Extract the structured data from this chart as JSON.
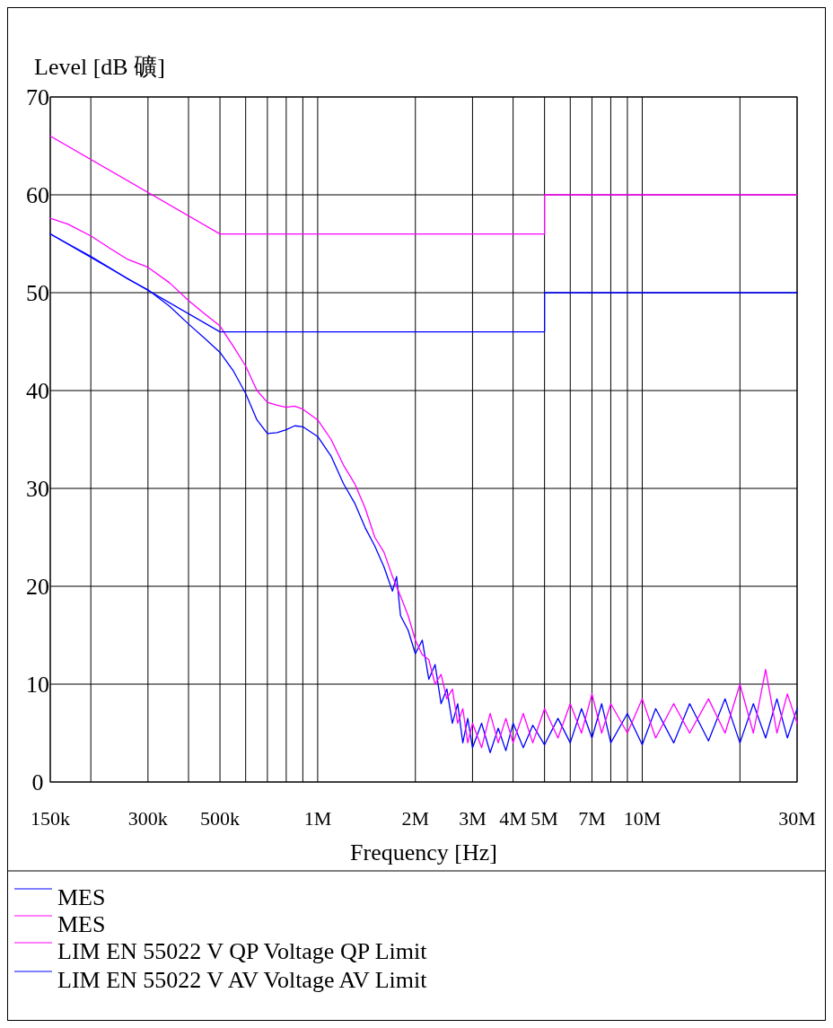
{
  "chart_data": {
    "type": "line",
    "ylabel": "Level [dB 礦]",
    "xlabel": "Frequency [Hz]",
    "log": "x",
    "grid": true,
    "legend": "bottom",
    "line_style": "solid",
    "xlim": [
      150000,
      30000000
    ],
    "xticks": [
      {
        "value": 150000,
        "label": "150k"
      },
      {
        "value": 200000,
        "label": null
      },
      {
        "value": 300000,
        "label": "300k"
      },
      {
        "value": 400000,
        "label": null
      },
      {
        "value": 500000,
        "label": "500k"
      },
      {
        "value": 600000,
        "label": null
      },
      {
        "value": 700000,
        "label": null
      },
      {
        "value": 800000,
        "label": null
      },
      {
        "value": 900000,
        "label": null
      },
      {
        "value": 1000000,
        "label": "1M"
      },
      {
        "value": 2000000,
        "label": "2M"
      },
      {
        "value": 3000000,
        "label": "3M"
      },
      {
        "value": 4000000,
        "label": "4M"
      },
      {
        "value": 5000000,
        "label": "5M"
      },
      {
        "value": 6000000,
        "label": null
      },
      {
        "value": 7000000,
        "label": "7M"
      },
      {
        "value": 8000000,
        "label": null
      },
      {
        "value": 9000000,
        "label": null
      },
      {
        "value": 10000000,
        "label": "10M"
      },
      {
        "value": 20000000,
        "label": null
      },
      {
        "value": 30000000,
        "label": "30M"
      }
    ],
    "ylim": [
      0,
      70
    ],
    "yticks": [
      0,
      10,
      20,
      30,
      40,
      50,
      60,
      70
    ],
    "series": [
      {
        "name": "MES",
        "color": "#0000ff",
        "x": [
          150000,
          170000,
          200000,
          230000,
          260000,
          300000,
          350000,
          400000,
          450000,
          500000,
          550000,
          600000,
          650000,
          700000,
          750000,
          800000,
          850000,
          900000,
          1000000,
          1100000,
          1200000,
          1300000,
          1400000,
          1500000,
          1600000,
          1700000,
          1750000,
          1800000,
          1900000,
          2000000,
          2100000,
          2200000,
          2300000,
          2400000,
          2500000,
          2600000,
          2700000,
          2800000,
          2900000,
          3000000,
          3200000,
          3400000,
          3600000,
          3800000,
          4000000,
          4300000,
          4600000,
          5000000,
          5500000,
          6000000,
          6500000,
          7000000,
          7500000,
          8000000,
          9000000,
          10000000,
          11000000,
          12500000,
          14000000,
          16000000,
          18000000,
          20000000,
          22000000,
          24000000,
          26000000,
          28000000,
          30000000
        ],
        "values": [
          56.0,
          55.0,
          53.7,
          52.5,
          51.4,
          50.3,
          48.6,
          46.8,
          45.3,
          43.9,
          42.0,
          39.7,
          37.0,
          35.6,
          35.7,
          36.0,
          36.4,
          36.3,
          35.3,
          33.3,
          30.5,
          28.5,
          26.0,
          24.1,
          22.0,
          19.5,
          21.0,
          17.0,
          15.5,
          13.1,
          14.5,
          10.5,
          12.0,
          8.0,
          9.5,
          6.0,
          8.0,
          4.0,
          6.5,
          3.5,
          6.0,
          3.0,
          5.5,
          3.2,
          6.0,
          3.5,
          5.8,
          3.8,
          6.5,
          4.0,
          7.5,
          4.5,
          8.0,
          4.0,
          7.0,
          3.8,
          7.5,
          4.0,
          8.0,
          4.2,
          8.5,
          4.0,
          8.0,
          4.5,
          8.5,
          4.5,
          7.5
        ]
      },
      {
        "name": "MES",
        "color": "#ff00ff",
        "x": [
          150000,
          170000,
          200000,
          230000,
          260000,
          300000,
          350000,
          400000,
          450000,
          500000,
          550000,
          600000,
          650000,
          700000,
          750000,
          800000,
          850000,
          900000,
          1000000,
          1100000,
          1200000,
          1300000,
          1400000,
          1500000,
          1600000,
          1700000,
          1800000,
          1900000,
          2000000,
          2100000,
          2200000,
          2300000,
          2400000,
          2500000,
          2600000,
          2700000,
          2800000,
          2900000,
          3000000,
          3200000,
          3400000,
          3600000,
          3800000,
          4000000,
          4300000,
          4600000,
          5000000,
          5500000,
          6000000,
          6500000,
          7000000,
          7500000,
          8000000,
          9000000,
          10000000,
          11000000,
          12500000,
          14000000,
          16000000,
          18000000,
          20000000,
          22000000,
          24000000,
          26000000,
          28000000,
          30000000
        ],
        "values": [
          57.6,
          57.0,
          55.8,
          54.5,
          53.4,
          52.6,
          51.0,
          49.2,
          47.8,
          46.6,
          44.5,
          42.5,
          40.0,
          38.8,
          38.5,
          38.3,
          38.4,
          38.1,
          37.0,
          35.0,
          32.4,
          30.5,
          28.0,
          25.0,
          23.5,
          21.0,
          19.0,
          17.0,
          14.5,
          13.0,
          12.5,
          10.0,
          11.0,
          8.5,
          9.5,
          6.0,
          7.5,
          4.0,
          6.0,
          3.5,
          7.0,
          4.0,
          6.5,
          4.0,
          7.0,
          4.0,
          7.5,
          4.5,
          8.0,
          5.0,
          9.0,
          5.0,
          8.0,
          5.0,
          8.5,
          4.5,
          8.0,
          5.0,
          8.5,
          5.0,
          10.0,
          5.0,
          11.5,
          5.0,
          9.0,
          6.0
        ]
      },
      {
        "name": "LIM EN 55022 V QP Voltage QP Limit",
        "color": "#ff00ff",
        "x": [
          150000,
          500000,
          5000000,
          5000000,
          30000000
        ],
        "values": [
          66,
          56,
          56,
          60,
          60
        ]
      },
      {
        "name": "LIM EN 55022 V AV Voltage AV Limit",
        "color": "#0000ff",
        "x": [
          150000,
          500000,
          5000000,
          5000000,
          30000000
        ],
        "values": [
          56,
          46,
          46,
          50,
          50
        ]
      }
    ]
  }
}
